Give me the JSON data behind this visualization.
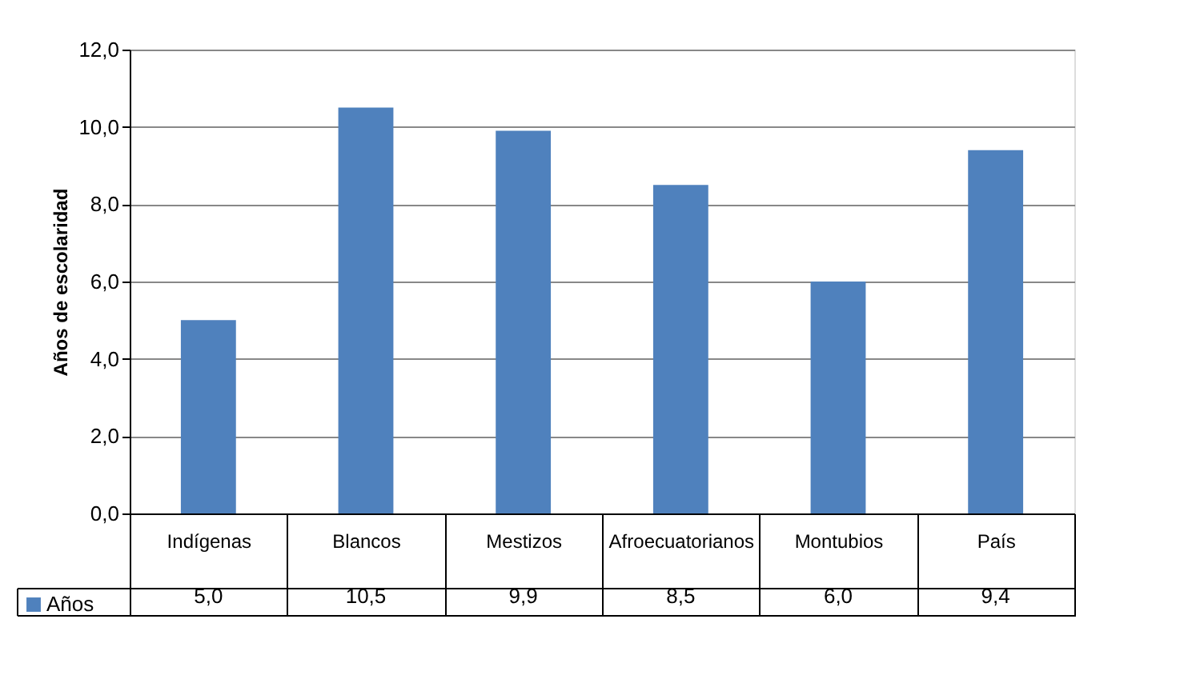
{
  "chart_data": {
    "type": "bar",
    "ylabel": "Años de escolaridad",
    "categories": [
      "Indígenas",
      "Blancos",
      "Mestizos",
      "Afroecuatorianos",
      "Montubios",
      "País"
    ],
    "series": [
      {
        "name": "Años",
        "color": "#4f81bd",
        "values": [
          5.0,
          10.5,
          9.9,
          8.5,
          6.0,
          9.4
        ]
      }
    ],
    "ylim": [
      0,
      12
    ],
    "yticks": [
      {
        "value": 0,
        "label": "0,0"
      },
      {
        "value": 2,
        "label": "2,0"
      },
      {
        "value": 4,
        "label": "4,0"
      },
      {
        "value": 6,
        "label": "6,0"
      },
      {
        "value": 8,
        "label": "8,0"
      },
      {
        "value": 10,
        "label": "10,0"
      },
      {
        "value": 12,
        "label": "12,0"
      }
    ],
    "value_labels": [
      "5,0",
      "10,5",
      "9,9",
      "8,5",
      "6,0",
      "9,4"
    ],
    "grid": "y",
    "legend": "bottom left"
  }
}
